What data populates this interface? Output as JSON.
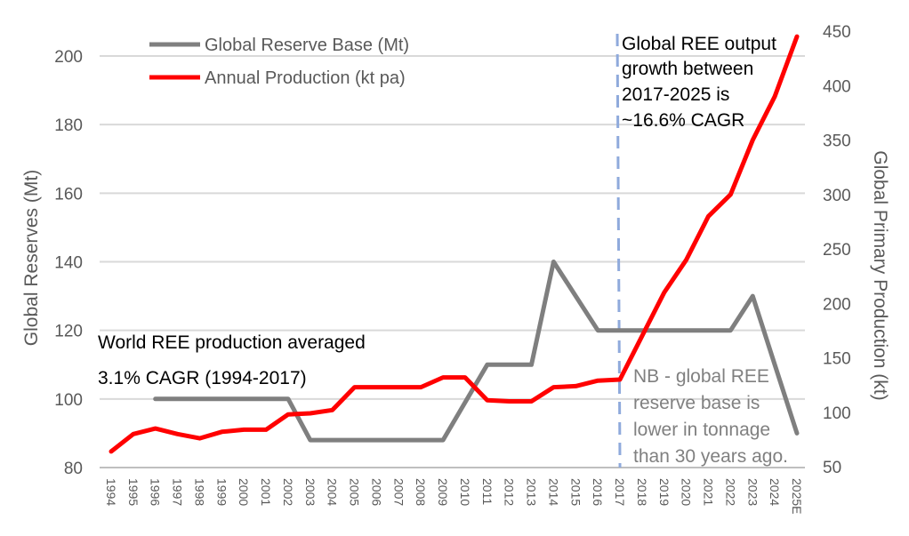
{
  "chart_data": {
    "type": "line",
    "x": [
      "1994",
      "1995",
      "1996",
      "1997",
      "1998",
      "1999",
      "2000",
      "2001",
      "2002",
      "2003",
      "2004",
      "2005",
      "2006",
      "2007",
      "2008",
      "2009",
      "2010",
      "2011",
      "2012",
      "2013",
      "2014",
      "2015",
      "2016",
      "2017",
      "2018",
      "2019",
      "2020",
      "2021",
      "2022",
      "2023",
      "2024",
      "2025E"
    ],
    "series": [
      {
        "name": "Global Reserve Base (Mt)",
        "axis": "left",
        "color": "#7f7f7f",
        "values": [
          null,
          null,
          100,
          100,
          100,
          100,
          100,
          100,
          100,
          88,
          88,
          88,
          88,
          88,
          88,
          88,
          99,
          110,
          110,
          110,
          140,
          130,
          120,
          120,
          120,
          120,
          120,
          120,
          120,
          130,
          110,
          90
        ]
      },
      {
        "name": "Annual Production (kt pa)",
        "axis": "right",
        "color": "#ff0000",
        "values": [
          64,
          80,
          85,
          80,
          76,
          82,
          84,
          84,
          98,
          99,
          102,
          123,
          123,
          123,
          123,
          132,
          132,
          111,
          110,
          110,
          123,
          124,
          129,
          130,
          170,
          210,
          240,
          280,
          300,
          350,
          390,
          445
        ]
      }
    ],
    "ylabel_left": "Global Reserves (Mt)",
    "ylabel_right": "Global Primary Production (kt)",
    "ylim_left": [
      80,
      210
    ],
    "yticks_left": [
      "80",
      "100",
      "120",
      "140",
      "160",
      "180",
      "200"
    ],
    "ylim_right": [
      50,
      450
    ],
    "yticks_right": [
      "50",
      "100",
      "150",
      "200",
      "250",
      "300",
      "350",
      "400",
      "450"
    ],
    "grid": "horizontal",
    "legend_position": "top-left",
    "marker_line": {
      "x": "2017",
      "color": "#8faadc",
      "style": "dashed"
    },
    "annotations": {
      "left_line1": "World REE production averaged",
      "left_line2": "3.1% CAGR (1994-2017)",
      "right_top": [
        "Global REE output",
        "growth between",
        "2017-2025 is",
        "~16.6% CAGR"
      ],
      "right_bottom": [
        "NB - global REE",
        "reserve base is",
        "lower in tonnage",
        "than 30 years ago."
      ]
    }
  }
}
